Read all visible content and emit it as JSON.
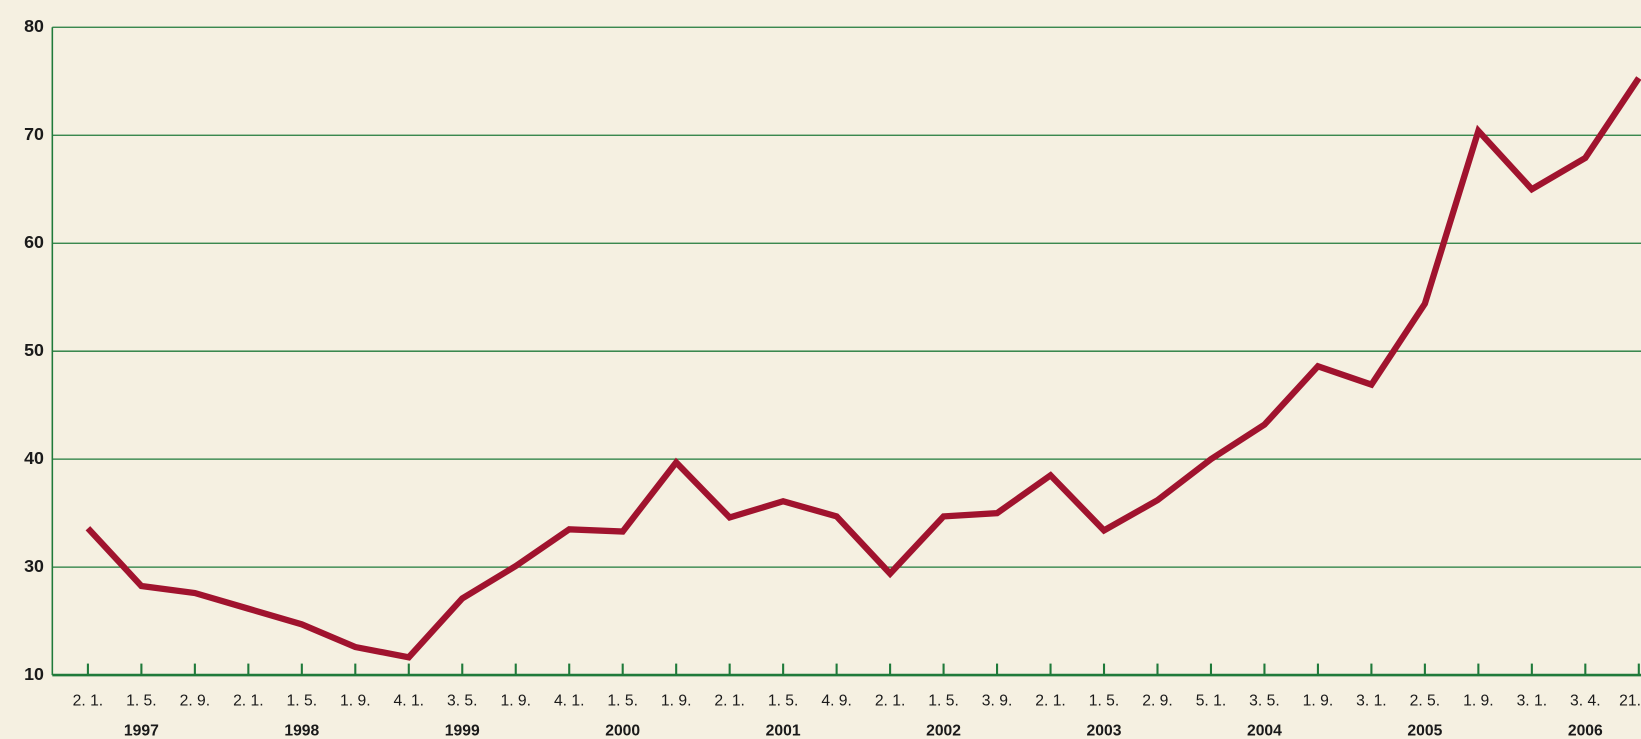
{
  "chart_data": {
    "type": "line",
    "categories": [
      "2. 1.",
      "1. 5.",
      "2. 9.",
      "2. 1.",
      "1. 5.",
      "1. 9.",
      "4. 1.",
      "3. 5.",
      "1. 9.",
      "4. 1.",
      "1. 5.",
      "1. 9.",
      "2. 1.",
      "1. 5.",
      "4. 9.",
      "2. 1.",
      "1. 5.",
      "3. 9.",
      "2. 1.",
      "1. 5.",
      "2. 9.",
      "5. 1.",
      "3. 5.",
      "1. 9.",
      "3. 1.",
      "2. 5.",
      "1. 9.",
      "3. 1.",
      "3. 4.",
      "21. 4."
    ],
    "years": [
      "1997",
      "1998",
      "1999",
      "2000",
      "2001",
      "2002",
      "2003",
      "2004",
      "2005",
      "2006"
    ],
    "values": [
      33.6,
      26.5,
      25.2,
      22.3,
      19.4,
      15.2,
      13.3,
      24.2,
      30.1,
      33.5,
      33.3,
      39.7,
      34.6,
      36.1,
      34.7,
      28.8,
      34.7,
      35.0,
      38.5,
      33.4,
      36.2,
      40.0,
      43.2,
      48.6,
      46.9,
      54.4,
      70.4,
      65.0,
      67.9,
      75.3
    ],
    "color": "#a0132e",
    "axis_color": "#1f7a3a",
    "ylim": [
      10,
      80
    ],
    "yticks": [
      10,
      30,
      40,
      50,
      60,
      70,
      80
    ],
    "grid": true
  }
}
